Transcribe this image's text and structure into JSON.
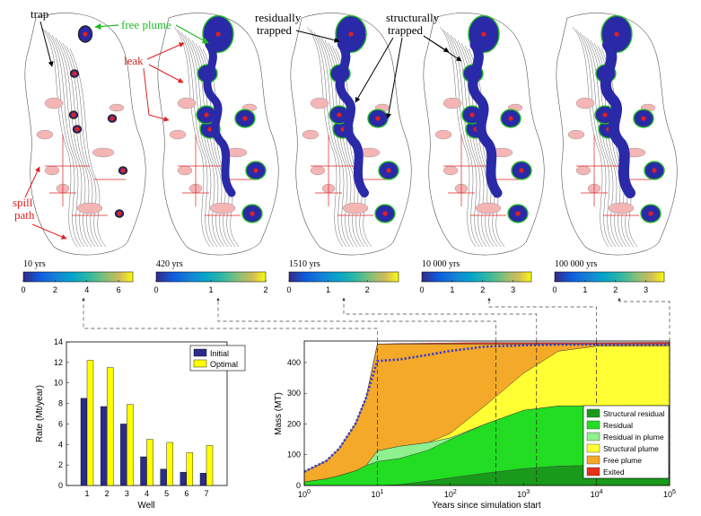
{
  "snapshots": [
    {
      "time_label": "10 yrs",
      "cb_ticks": [
        "0",
        "2",
        "4",
        "6"
      ],
      "cb_vals": [
        0,
        2,
        4,
        6
      ],
      "cb_max": 6.9
    },
    {
      "time_label": "420 yrs",
      "cb_ticks": [
        "0",
        "1",
        "2"
      ],
      "cb_vals": [
        0,
        1,
        2
      ],
      "cb_max": 2.0
    },
    {
      "time_label": "1510 yrs",
      "cb_ticks": [
        "0",
        "1",
        "2"
      ],
      "cb_vals": [
        0,
        1,
        2
      ],
      "cb_max": 2.8
    },
    {
      "time_label": "10 000 yrs",
      "cb_ticks": [
        "0",
        "1",
        "2",
        "3"
      ],
      "cb_vals": [
        0,
        1,
        2,
        3
      ],
      "cb_max": 3.6
    },
    {
      "time_label": "100 000 yrs",
      "cb_ticks": [
        "0",
        "1",
        "2",
        "3"
      ],
      "cb_vals": [
        0,
        1,
        2,
        3
      ],
      "cb_max": 3.6
    }
  ],
  "annotations": {
    "trap": "trap",
    "free_plume": "free plume",
    "leak": "leak",
    "spill_path_1": "spill",
    "spill_path_2": "path",
    "residually_1": "residually",
    "residually_2": "trapped",
    "structurally_1": "structurally",
    "structurally_2": "trapped"
  },
  "colors": {
    "annotation_black": "#000000",
    "annotation_green": "#22bb22",
    "annotation_red": "#e02020",
    "plume_blue": "#2a2aa8",
    "bar_initial": "#2b2b8c",
    "bar_optimal": "#ffff00",
    "structural_residual": "#1a9a1a",
    "residual": "#22dd22",
    "residual_in_plume": "#8ef08e",
    "structural_plume": "#ffff33",
    "free_plume": "#f4a928",
    "exited": "#e8301a",
    "dotted_line": "#3a3ac8"
  },
  "chart_data": [
    {
      "type": "bar",
      "title": "",
      "xlabel": "Well",
      "ylabel": "Rate (Mt/year)",
      "categories": [
        "1",
        "2",
        "3",
        "4",
        "5",
        "6",
        "7"
      ],
      "ylim": [
        0,
        14
      ],
      "yticks": [
        "0",
        "2",
        "4",
        "6",
        "8",
        "10",
        "12",
        "14"
      ],
      "legend": "top-right",
      "series": [
        {
          "name": "Initial",
          "values": [
            8.5,
            7.7,
            6.0,
            2.8,
            1.6,
            1.3,
            1.2
          ]
        },
        {
          "name": "Optimal",
          "values": [
            12.2,
            11.5,
            7.9,
            4.5,
            4.2,
            3.2,
            3.9
          ]
        }
      ]
    },
    {
      "type": "area",
      "title": "",
      "xlabel": "Years since simulation start",
      "ylabel": "Mass (MT)",
      "x_scale": "log",
      "xlim": [
        1,
        100000
      ],
      "ylim": [
        0,
        470
      ],
      "xticks": [
        "10^0",
        "10^1",
        "10^2",
        "10^3",
        "10^4",
        "10^5"
      ],
      "yticks": [
        "0",
        "100",
        "200",
        "300",
        "400"
      ],
      "legend": "bottom-right",
      "x": [
        1,
        2,
        3,
        5,
        7,
        10,
        20,
        50,
        100,
        300,
        1000,
        3000,
        10000,
        100000
      ],
      "series": [
        {
          "name": "Structural residual",
          "values": [
            0,
            0,
            0,
            0,
            0,
            0,
            3,
            15,
            25,
            40,
            55,
            63,
            66,
            67
          ]
        },
        {
          "name": "Residual",
          "values": [
            12,
            22,
            32,
            48,
            65,
            78,
            85,
            100,
            125,
            160,
            190,
            196,
            193,
            193
          ]
        },
        {
          "name": "Residual in plume",
          "values": [
            0,
            0,
            0,
            0,
            0,
            35,
            40,
            25,
            5,
            0,
            0,
            0,
            0,
            0
          ]
        },
        {
          "name": "Structural plume",
          "values": [
            0,
            0,
            0,
            0,
            0,
            0,
            0,
            0,
            15,
            60,
            120,
            178,
            194,
            194
          ]
        },
        {
          "name": "Free plume",
          "values": [
            33,
            58,
            88,
            152,
            220,
            347,
            332,
            320,
            290,
            200,
            95,
            23,
            7,
            6
          ]
        },
        {
          "name": "Exited",
          "values": [
            0,
            0,
            0,
            0,
            0,
            0,
            2,
            3,
            4,
            5,
            5,
            5,
            5,
            6
          ]
        }
      ],
      "dotted_line_values": [
        45,
        80,
        120,
        200,
        285,
        405,
        410,
        425,
        438,
        452,
        456,
        458,
        458,
        458
      ]
    }
  ]
}
